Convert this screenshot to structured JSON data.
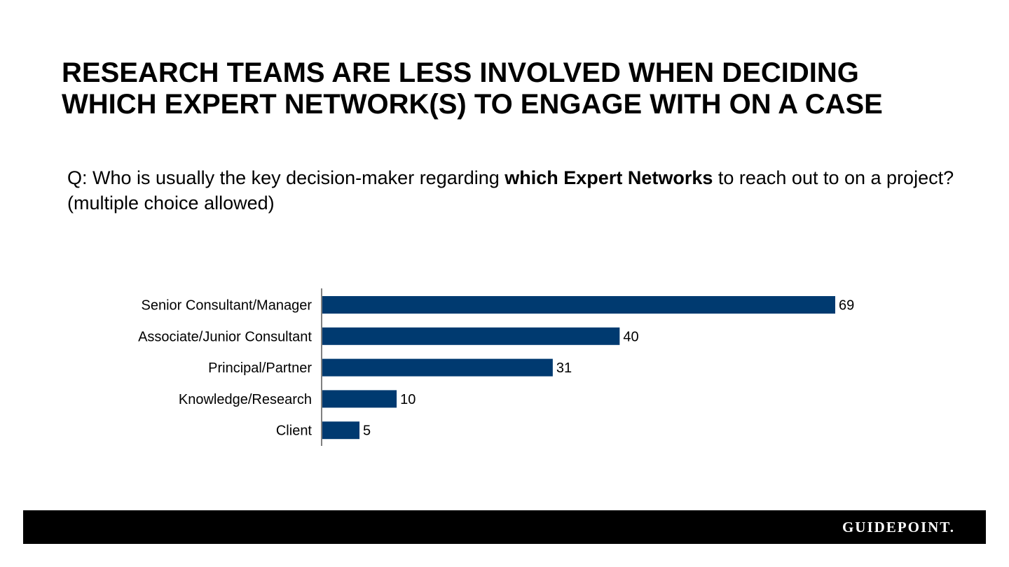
{
  "title": {
    "line1": "RESEARCH TEAMS ARE LESS INVOLVED WHEN DECIDING",
    "line2": "WHICH EXPERT NETWORK(S) TO ENGAGE WITH ON A CASE"
  },
  "question": {
    "prefix": "Q: Who is usually the key decision-maker regarding ",
    "bold": "which Expert Networks",
    "suffix": " to reach out to on a project? (multiple choice allowed)"
  },
  "chart_data": {
    "type": "bar",
    "orientation": "horizontal",
    "categories": [
      "Senior Consultant/Manager",
      "Associate/Junior Consultant",
      "Principal/Partner",
      "Knowledge/Research",
      "Client"
    ],
    "values": [
      69,
      40,
      31,
      10,
      5
    ],
    "data_labels": [
      "69",
      "40",
      "31",
      "10",
      "5"
    ],
    "xlim": [
      0,
      69
    ],
    "grid": false,
    "legend": "none",
    "bar_color": "#003a70",
    "axis_color": "#000000"
  },
  "footer": {
    "logo_text": "GUIDEPOINT.",
    "background": "#000000"
  }
}
